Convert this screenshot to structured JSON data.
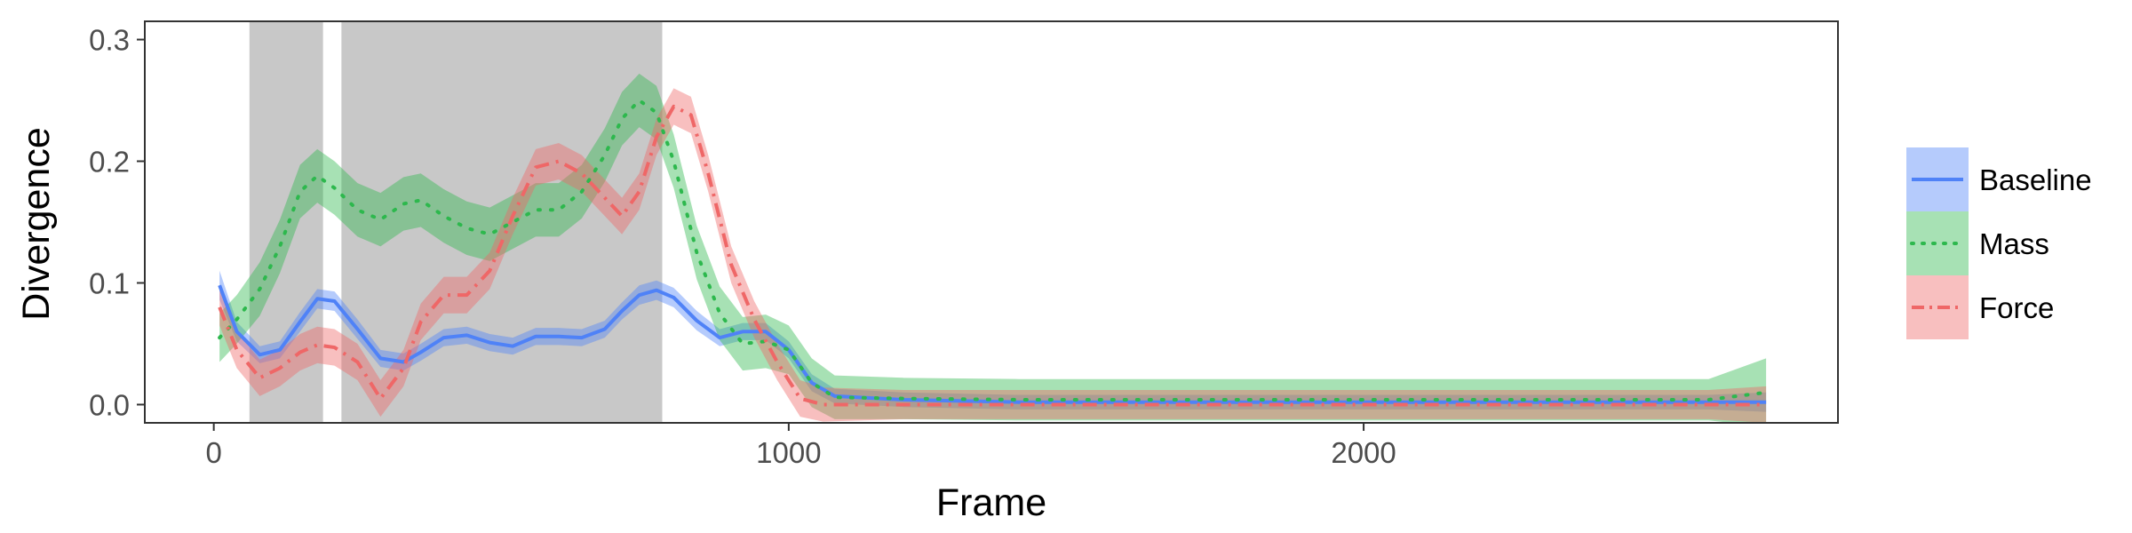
{
  "chart_data": {
    "type": "line",
    "xlabel": "Frame",
    "ylabel": "Divergence",
    "xlim": [
      -120,
      2825
    ],
    "ylim": [
      -0.015,
      0.315
    ],
    "x_ticks": [
      0,
      1000,
      2000
    ],
    "x_tick_labels": [
      "0",
      "1000",
      "2000"
    ],
    "y_ticks": [
      0.0,
      0.1,
      0.2,
      0.3
    ],
    "y_tick_labels": [
      "0.0",
      "0.1",
      "0.2",
      "0.3"
    ],
    "grid": false,
    "legend_position": "right",
    "shaded_regions": [
      [
        62,
        190
      ],
      [
        222,
        780
      ]
    ],
    "shade_color": "#c8c8c8",
    "series": [
      {
        "name": "Baseline",
        "color": "#4f82f7",
        "dash": "solid",
        "points": [
          [
            10,
            0.098,
            0.012
          ],
          [
            40,
            0.06,
            0.008
          ],
          [
            80,
            0.041,
            0.007
          ],
          [
            115,
            0.045,
            0.007
          ],
          [
            150,
            0.068,
            0.008
          ],
          [
            180,
            0.087,
            0.008
          ],
          [
            210,
            0.085,
            0.008
          ],
          [
            250,
            0.062,
            0.008
          ],
          [
            290,
            0.038,
            0.007
          ],
          [
            330,
            0.035,
            0.007
          ],
          [
            360,
            0.043,
            0.007
          ],
          [
            400,
            0.055,
            0.007
          ],
          [
            440,
            0.057,
            0.007
          ],
          [
            480,
            0.051,
            0.007
          ],
          [
            520,
            0.048,
            0.007
          ],
          [
            560,
            0.056,
            0.007
          ],
          [
            600,
            0.056,
            0.007
          ],
          [
            640,
            0.055,
            0.007
          ],
          [
            680,
            0.062,
            0.007
          ],
          [
            710,
            0.077,
            0.007
          ],
          [
            740,
            0.09,
            0.008
          ],
          [
            770,
            0.094,
            0.008
          ],
          [
            800,
            0.088,
            0.008
          ],
          [
            840,
            0.069,
            0.008
          ],
          [
            880,
            0.055,
            0.007
          ],
          [
            920,
            0.06,
            0.007
          ],
          [
            960,
            0.06,
            0.007
          ],
          [
            1000,
            0.045,
            0.007
          ],
          [
            1040,
            0.018,
            0.007
          ],
          [
            1080,
            0.007,
            0.006
          ],
          [
            1200,
            0.004,
            0.006
          ],
          [
            1400,
            0.002,
            0.006
          ],
          [
            1600,
            0.002,
            0.006
          ],
          [
            1800,
            0.002,
            0.006
          ],
          [
            2000,
            0.002,
            0.006
          ],
          [
            2200,
            0.002,
            0.006
          ],
          [
            2400,
            0.002,
            0.006
          ],
          [
            2600,
            0.002,
            0.006
          ],
          [
            2700,
            0.002,
            0.008
          ]
        ]
      },
      {
        "name": "Mass",
        "color": "#2db84d",
        "dash": "dotted",
        "points": [
          [
            10,
            0.055,
            0.02
          ],
          [
            40,
            0.07,
            0.02
          ],
          [
            80,
            0.095,
            0.022
          ],
          [
            115,
            0.13,
            0.022
          ],
          [
            150,
            0.175,
            0.022
          ],
          [
            180,
            0.188,
            0.022
          ],
          [
            210,
            0.178,
            0.022
          ],
          [
            250,
            0.16,
            0.022
          ],
          [
            290,
            0.152,
            0.022
          ],
          [
            330,
            0.165,
            0.022
          ],
          [
            360,
            0.168,
            0.022
          ],
          [
            400,
            0.155,
            0.022
          ],
          [
            440,
            0.145,
            0.022
          ],
          [
            480,
            0.14,
            0.022
          ],
          [
            520,
            0.15,
            0.022
          ],
          [
            560,
            0.16,
            0.022
          ],
          [
            600,
            0.16,
            0.022
          ],
          [
            640,
            0.175,
            0.022
          ],
          [
            680,
            0.205,
            0.022
          ],
          [
            710,
            0.235,
            0.022
          ],
          [
            740,
            0.25,
            0.022
          ],
          [
            770,
            0.24,
            0.022
          ],
          [
            800,
            0.2,
            0.022
          ],
          [
            840,
            0.125,
            0.022
          ],
          [
            880,
            0.075,
            0.022
          ],
          [
            920,
            0.05,
            0.022
          ],
          [
            960,
            0.052,
            0.022
          ],
          [
            1000,
            0.045,
            0.02
          ],
          [
            1040,
            0.018,
            0.02
          ],
          [
            1080,
            0.006,
            0.018
          ],
          [
            1200,
            0.005,
            0.017
          ],
          [
            1400,
            0.004,
            0.017
          ],
          [
            1600,
            0.004,
            0.017
          ],
          [
            1800,
            0.004,
            0.017
          ],
          [
            2000,
            0.004,
            0.017
          ],
          [
            2200,
            0.004,
            0.017
          ],
          [
            2400,
            0.004,
            0.017
          ],
          [
            2600,
            0.004,
            0.017
          ],
          [
            2700,
            0.01,
            0.028
          ]
        ]
      },
      {
        "name": "Force",
        "color": "#ef6767",
        "dash": "dashdot",
        "points": [
          [
            10,
            0.08,
            0.015
          ],
          [
            40,
            0.045,
            0.015
          ],
          [
            80,
            0.022,
            0.015
          ],
          [
            115,
            0.03,
            0.015
          ],
          [
            150,
            0.043,
            0.015
          ],
          [
            180,
            0.049,
            0.015
          ],
          [
            210,
            0.047,
            0.015
          ],
          [
            250,
            0.035,
            0.015
          ],
          [
            290,
            0.005,
            0.015
          ],
          [
            330,
            0.03,
            0.015
          ],
          [
            360,
            0.068,
            0.015
          ],
          [
            400,
            0.09,
            0.015
          ],
          [
            440,
            0.09,
            0.015
          ],
          [
            480,
            0.11,
            0.015
          ],
          [
            520,
            0.155,
            0.015
          ],
          [
            560,
            0.195,
            0.015
          ],
          [
            600,
            0.2,
            0.015
          ],
          [
            640,
            0.19,
            0.015
          ],
          [
            680,
            0.17,
            0.015
          ],
          [
            710,
            0.155,
            0.015
          ],
          [
            740,
            0.175,
            0.015
          ],
          [
            770,
            0.22,
            0.015
          ],
          [
            800,
            0.245,
            0.015
          ],
          [
            830,
            0.238,
            0.015
          ],
          [
            860,
            0.19,
            0.015
          ],
          [
            900,
            0.115,
            0.015
          ],
          [
            940,
            0.07,
            0.015
          ],
          [
            980,
            0.035,
            0.015
          ],
          [
            1020,
            0.005,
            0.015
          ],
          [
            1060,
            0.0,
            0.014
          ],
          [
            1200,
            0.0,
            0.012
          ],
          [
            1400,
            0.0,
            0.012
          ],
          [
            1600,
            0.0,
            0.012
          ],
          [
            1800,
            0.0,
            0.012
          ],
          [
            2000,
            0.0,
            0.012
          ],
          [
            2200,
            0.0,
            0.012
          ],
          [
            2400,
            0.0,
            0.012
          ],
          [
            2600,
            0.0,
            0.012
          ],
          [
            2700,
            0.0,
            0.015
          ]
        ]
      }
    ]
  }
}
